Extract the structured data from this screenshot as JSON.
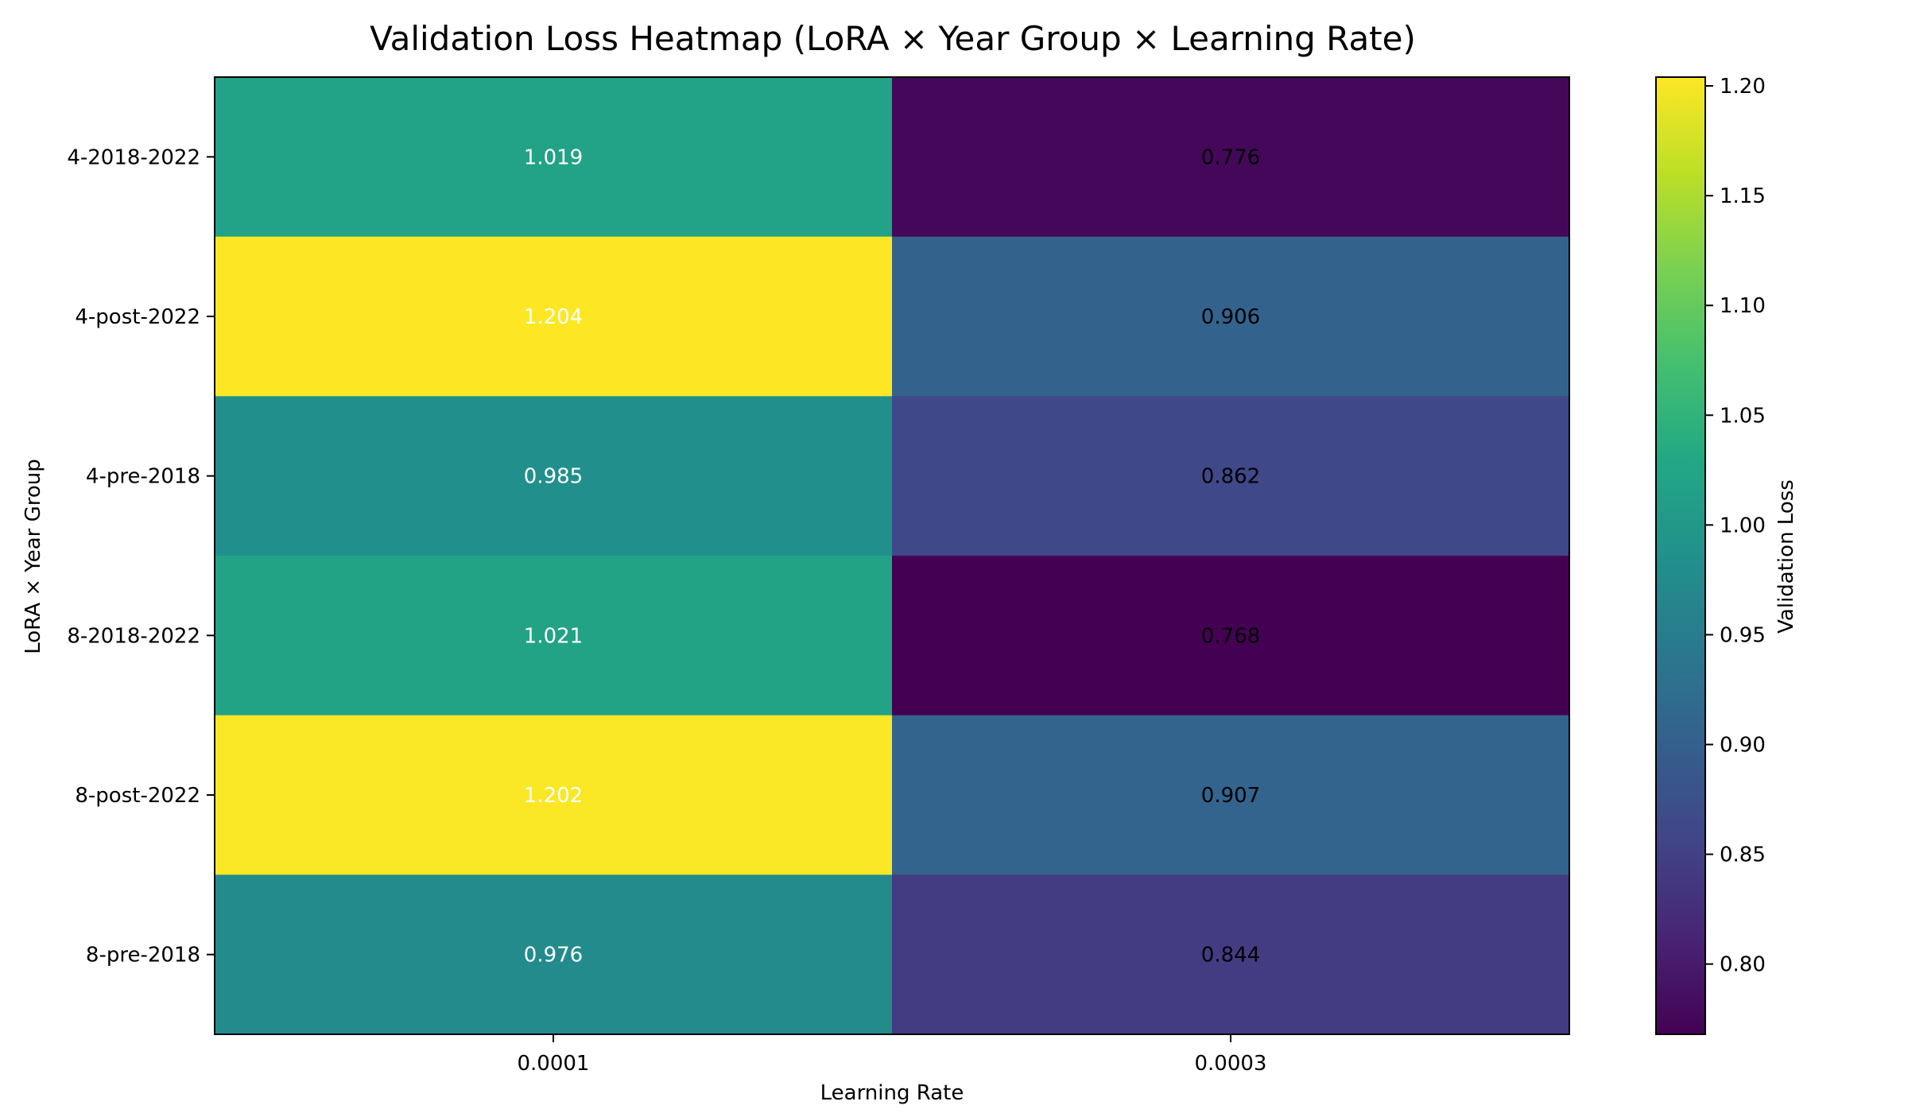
{
  "chart_data": {
    "type": "heatmap",
    "title": "Validation Loss Heatmap (LoRA × Year Group × Learning Rate)",
    "xlabel": "Learning Rate",
    "ylabel": "LoRA × Year Group",
    "x_categories": [
      "0.0001",
      "0.0003"
    ],
    "y_categories": [
      "4-2018-2022",
      "4-post-2022",
      "4-pre-2018",
      "8-2018-2022",
      "8-post-2022",
      "8-pre-2018"
    ],
    "values": [
      [
        1.019,
        0.776
      ],
      [
        1.204,
        0.906
      ],
      [
        0.985,
        0.862
      ],
      [
        1.021,
        0.768
      ],
      [
        1.202,
        0.907
      ],
      [
        0.976,
        0.844
      ]
    ],
    "cell_labels": [
      [
        "1.019",
        "0.776"
      ],
      [
        "1.204",
        "0.906"
      ],
      [
        "0.985",
        "0.862"
      ],
      [
        "1.021",
        "0.768"
      ],
      [
        "1.202",
        "0.907"
      ],
      [
        "0.976",
        "0.844"
      ]
    ],
    "colormap": "viridis",
    "vmin": 0.768,
    "vmax": 1.204,
    "colorbar": {
      "label": "Validation Loss",
      "ticks": [
        0.8,
        0.85,
        0.9,
        0.95,
        1.0,
        1.05,
        1.1,
        1.15,
        1.2
      ],
      "tick_labels": [
        "0.80",
        "0.85",
        "0.90",
        "0.95",
        "1.00",
        "1.05",
        "1.10",
        "1.15",
        "1.20"
      ],
      "placement": "right"
    },
    "grid": false
  }
}
